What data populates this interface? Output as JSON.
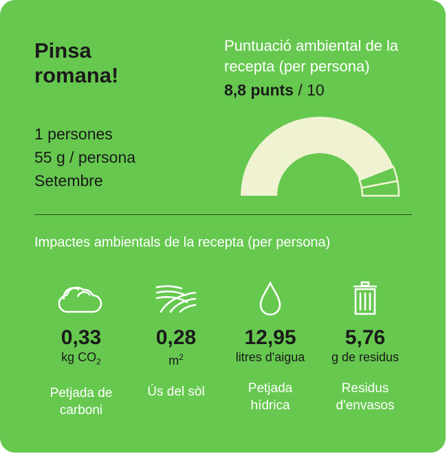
{
  "recipe": {
    "title": "Pinsa romana!",
    "servings": "1 persones",
    "portion": "55 g / persona",
    "month": "Setembre"
  },
  "score": {
    "label": "Puntuació ambiental de la recepta (per persona)",
    "value": "8,8 punts",
    "max": "/ 10",
    "fraction": 0.88
  },
  "impacts": {
    "section_title": "Impactes ambientals de la recepta (per persona)",
    "items": [
      {
        "icon": "cloud-icon",
        "value": "0,33",
        "unit_main": "kg CO",
        "unit_sub": "2",
        "name_line1": "Petjada de",
        "name_line2": "carboni"
      },
      {
        "icon": "field-icon",
        "value": "0,28",
        "unit_main": "m",
        "unit_sup": "2",
        "name_line1": "Ús del sòl",
        "name_line2": ""
      },
      {
        "icon": "water-drop-icon",
        "value": "12,95",
        "unit_main": "litres d'aigua",
        "name_line1": "Petjada",
        "name_line2": "hídrica"
      },
      {
        "icon": "trash-icon",
        "value": "5,76",
        "unit_main": "g de residus",
        "name_line1": "Residus",
        "name_line2": "d'envasos"
      }
    ]
  },
  "colors": {
    "background": "#66c84f",
    "gauge_fill": "#f2f4d6",
    "text_dark": "#1a1a1a",
    "text_light": "#ffffff"
  }
}
